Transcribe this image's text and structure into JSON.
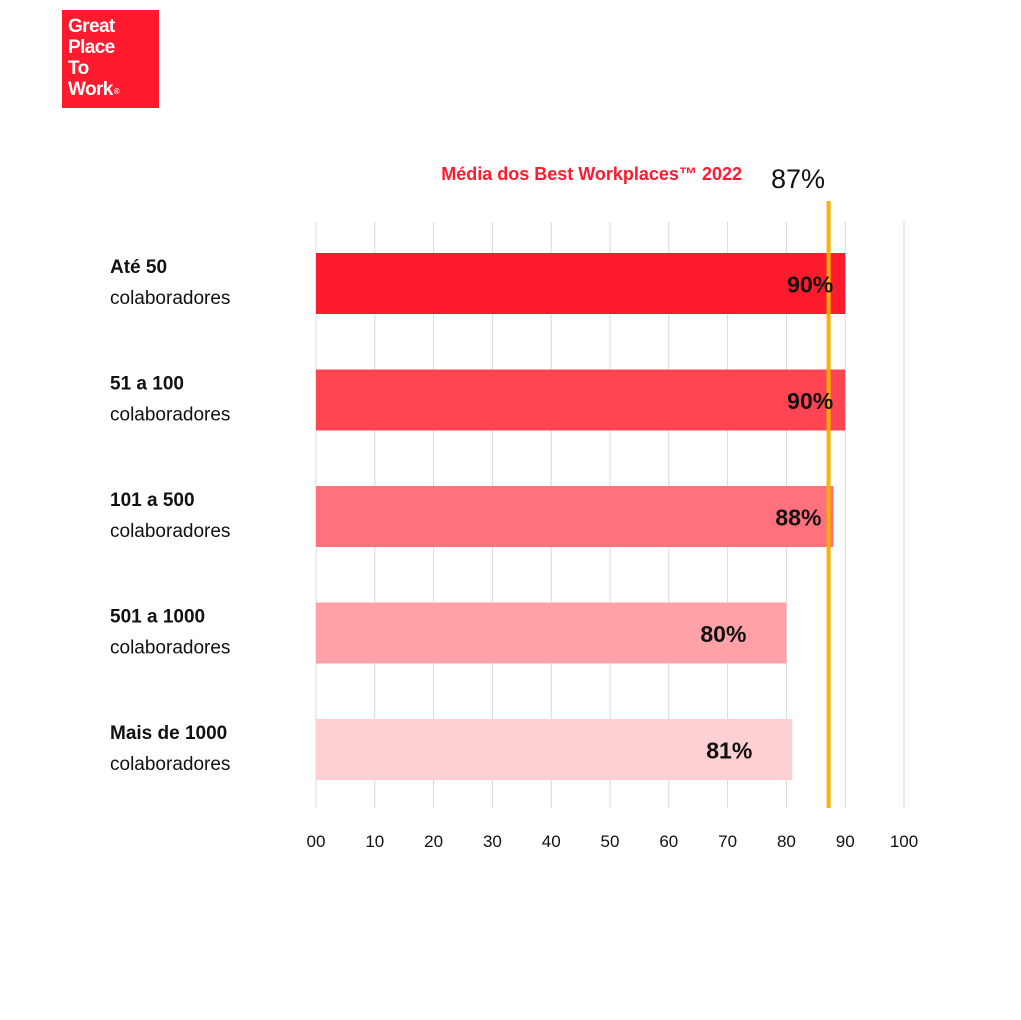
{
  "logo": {
    "lines": [
      "Great",
      "Place",
      "To",
      "Work"
    ],
    "registered_mark": "®",
    "color": "#ff1a2d"
  },
  "chart_data": {
    "type": "bar",
    "orientation": "horizontal",
    "title": "",
    "categories": [
      {
        "line1": "Até 50",
        "line2": "colaboradores"
      },
      {
        "line1": "51 a 100",
        "line2": "colaboradores"
      },
      {
        "line1": "101 a 500",
        "line2": "colaboradores"
      },
      {
        "line1": "501 a 1000",
        "line2": "colaboradores"
      },
      {
        "line1": "Mais de 1000",
        "line2": "colaboradores"
      }
    ],
    "values": [
      90,
      90,
      88,
      80,
      81
    ],
    "value_labels": [
      "90%",
      "90%",
      "88%",
      "80%",
      "81%"
    ],
    "bar_colors": [
      "#ff1a2d",
      "#ff4452",
      "#ff717c",
      "#ffa1a7",
      "#ffd0d3"
    ],
    "xlim": [
      0,
      100
    ],
    "ticks": [
      0,
      10,
      20,
      30,
      40,
      50,
      60,
      70,
      80,
      90,
      100
    ],
    "tick_labels": [
      "00",
      "10",
      "20",
      "30",
      "40",
      "50",
      "60",
      "70",
      "80",
      "90",
      "100"
    ],
    "grid": true,
    "reference_line": {
      "value": 87,
      "label": "Média dos Best Workplaces™ 2022",
      "value_label": "87%",
      "color": "#ffb000"
    }
  }
}
